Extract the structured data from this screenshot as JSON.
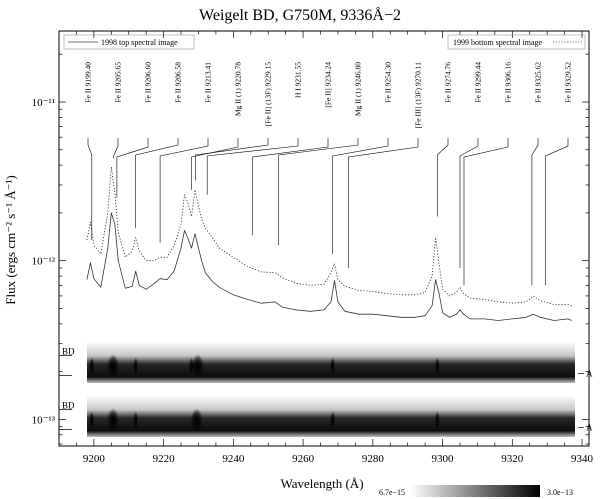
{
  "chart_data": {
    "type": "line",
    "title": "Weigelt BD, G750M, 9336Å−2",
    "xlabel": "Wavelength (Å)",
    "ylabel": "Flux (ergs cm⁻² s⁻¹ Å⁻¹)",
    "y_scale": "log",
    "xlim": [
      9190,
      9342
    ],
    "ylim": [
      6.8e-14,
      2.8e-11
    ],
    "x_ticks": [
      9200,
      9220,
      9240,
      9260,
      9280,
      9300,
      9320,
      9340
    ],
    "y_ticks": [
      {
        "value": 1e-13,
        "label": "10⁻¹³"
      },
      {
        "value": 1e-12,
        "label": "10⁻¹²"
      },
      {
        "value": 1e-11,
        "label": "10⁻¹¹"
      }
    ],
    "grid": false,
    "legend": [
      {
        "label": "1998 top spectral image",
        "style": "solid",
        "position": "top-left"
      },
      {
        "label": "1999 bottom spectral image",
        "style": "dotted",
        "position": "top-right"
      }
    ],
    "x": [
      9198,
      9199,
      9200,
      9202,
      9204,
      9205,
      9206,
      9207,
      9209,
      9211,
      9212,
      9213,
      9215,
      9217,
      9219,
      9221,
      9223,
      9225,
      9226,
      9227,
      9228,
      9229,
      9230,
      9231,
      9232,
      9234,
      9236,
      9240,
      9244,
      9248,
      9252,
      9254,
      9258,
      9262,
      9266,
      9268,
      9269,
      9270,
      9272,
      9276,
      9280,
      9284,
      9288,
      9292,
      9295,
      9297,
      9298,
      9299,
      9300,
      9302,
      9304,
      9305,
      9306,
      9308,
      9312,
      9316,
      9320,
      9324,
      9326,
      9328,
      9332,
      9336,
      9337
    ],
    "series": [
      {
        "name": "1998 top spectral image",
        "style": "solid",
        "values": [
          7.6e-13,
          9.7e-13,
          7.7e-13,
          6.8e-13,
          1.2e-12,
          2e-12,
          1.7e-12,
          1e-12,
          6.7e-13,
          6.9e-13,
          8.6e-13,
          7e-13,
          6.6e-13,
          7.1e-13,
          7.7e-13,
          7.6e-13,
          8.6e-13,
          1.2e-12,
          1.55e-12,
          1.38e-12,
          1.2e-12,
          1.48e-12,
          1.2e-12,
          9.8e-13,
          8.4e-13,
          7.4e-13,
          6.8e-13,
          6.1e-13,
          5.7e-13,
          5.4e-13,
          5.5e-13,
          5.1e-13,
          4.9e-13,
          4.8e-13,
          4.9e-13,
          5.5e-13,
          7.5e-13,
          5.5e-13,
          4.8e-13,
          4.6e-13,
          4.6e-13,
          4.5e-13,
          4.4e-13,
          4.4e-13,
          4.5e-13,
          5.2e-13,
          7.6e-13,
          6.2e-13,
          4.7e-13,
          4.4e-13,
          4.6e-13,
          4.9e-13,
          4.6e-13,
          4.3e-13,
          4.3e-13,
          4.2e-13,
          4.3e-13,
          4.4e-13,
          4.6e-13,
          4.4e-13,
          4.2e-13,
          4.3e-13,
          4.2e-13
        ]
      },
      {
        "name": "1999 bottom spectral image",
        "style": "dotted",
        "values": [
          1.35e-12,
          1.75e-12,
          1.25e-12,
          1.1e-12,
          2e-12,
          3.9e-12,
          2.7e-12,
          1.5e-12,
          1.05e-12,
          1.15e-12,
          1.4e-12,
          1.15e-12,
          1e-12,
          1e-12,
          1.05e-12,
          1.05e-12,
          1.25e-12,
          1.7e-12,
          2.6e-12,
          2.3e-12,
          1.9e-12,
          2.8e-12,
          2.2e-12,
          1.8e-12,
          1.6e-12,
          1.4e-12,
          1.2e-12,
          1.05e-12,
          9.2e-13,
          8.5e-13,
          8.4e-13,
          7.8e-13,
          7.2e-13,
          7e-13,
          7.1e-13,
          8.4e-13,
          9.6e-13,
          7.6e-13,
          6.9e-13,
          6.5e-13,
          6.4e-13,
          6.2e-13,
          6.1e-13,
          6.1e-13,
          6.3e-13,
          8e-13,
          1.4e-12,
          9.5e-13,
          6.6e-13,
          6e-13,
          6.3e-13,
          6.8e-13,
          6.2e-13,
          5.8e-13,
          5.7e-13,
          5.5e-13,
          5.4e-13,
          5.5e-13,
          6e-13,
          5.6e-13,
          5.3e-13,
          5.3e-13,
          5.2e-13
        ]
      }
    ],
    "line_ids": [
      {
        "label": "Fe II 9199.40",
        "wavelength": 9199.4,
        "tip_wavelength": 9199.4,
        "tip_flux": 1.35e-12
      },
      {
        "label": "Fe II 9205.65",
        "wavelength": 9205.65,
        "tip_wavelength": 9205.65,
        "tip_flux": 4.4e-12
      },
      {
        "label": "Fe II 9206.60",
        "wavelength": 9206.6,
        "tip_wavelength": 9206.6,
        "tip_flux": 2.5e-12
      },
      {
        "label": "Fe II 9206.58",
        "wavelength": 9206.58,
        "tip_wavelength": 9212.0,
        "tip_flux": 1.6e-12
      },
      {
        "label": "Fe II 9213.41",
        "wavelength": 9213.41,
        "tip_wavelength": 9219.0,
        "tip_flux": 1.3e-12
      },
      {
        "label": "Mg II (1) 9220.78",
        "wavelength": 9220.78,
        "tip_wavelength": 9228.0,
        "tip_flux": 2.8e-12
      },
      {
        "label": "[Fe II] (13F) 9229.15",
        "wavelength": 9229.15,
        "tip_wavelength": 9229.15,
        "tip_flux": 3.2e-12
      },
      {
        "label": "H I 9231.55",
        "wavelength": 9231.55,
        "tip_wavelength": 9232.5,
        "tip_flux": 2.6e-12
      },
      {
        "label": "[Fe II] 9234.24",
        "wavelength": 9234.24,
        "tip_wavelength": 9245.5,
        "tip_flux": 1.45e-12
      },
      {
        "label": "Mg II (1) 9246.80",
        "wavelength": 9246.8,
        "tip_wavelength": 9253.0,
        "tip_flux": 1.25e-12
      },
      {
        "label": "Fe II 9254.30",
        "wavelength": 9254.3,
        "tip_wavelength": 9268.5,
        "tip_flux": 1.1e-12
      },
      {
        "label": "[Fe III] (13F) 9270.11",
        "wavelength": 9270.11,
        "tip_wavelength": 9273.0,
        "tip_flux": 9e-13
      },
      {
        "label": "Fe II 9274.76",
        "wavelength": 9274.76,
        "tip_wavelength": 9298.5,
        "tip_flux": 1.9e-12
      },
      {
        "label": "Fe II 9299.44",
        "wavelength": 9299.44,
        "tip_wavelength": 9305.0,
        "tip_flux": 9e-13
      },
      {
        "label": "Fe II 9306.16",
        "wavelength": 9306.16,
        "tip_wavelength": 9306.16,
        "tip_flux": 7e-13
      },
      {
        "label": "Fe II 9325.62",
        "wavelength": 9325.62,
        "tip_wavelength": 9325.62,
        "tip_flux": 7e-13
      },
      {
        "label": "Fe II 9329.52",
        "wavelength": 9329.52,
        "tip_wavelength": 9329.52,
        "tip_flux": 7e-13
      }
    ],
    "spectral_images": [
      {
        "left_label": "BD",
        "right_label": "A",
        "emission": [
          9199.4,
          9205.5,
          9212.0,
          9228.0,
          9229.8,
          9268.5,
          9298.5
        ]
      },
      {
        "left_label": "BD",
        "right_label": "A",
        "emission": [
          9199.4,
          9205.5,
          9212.0,
          9229.5,
          9268.5,
          9298.5
        ]
      }
    ],
    "colorbar": {
      "min_label": "6.7e−15",
      "max_label": "3.0e−13"
    }
  }
}
